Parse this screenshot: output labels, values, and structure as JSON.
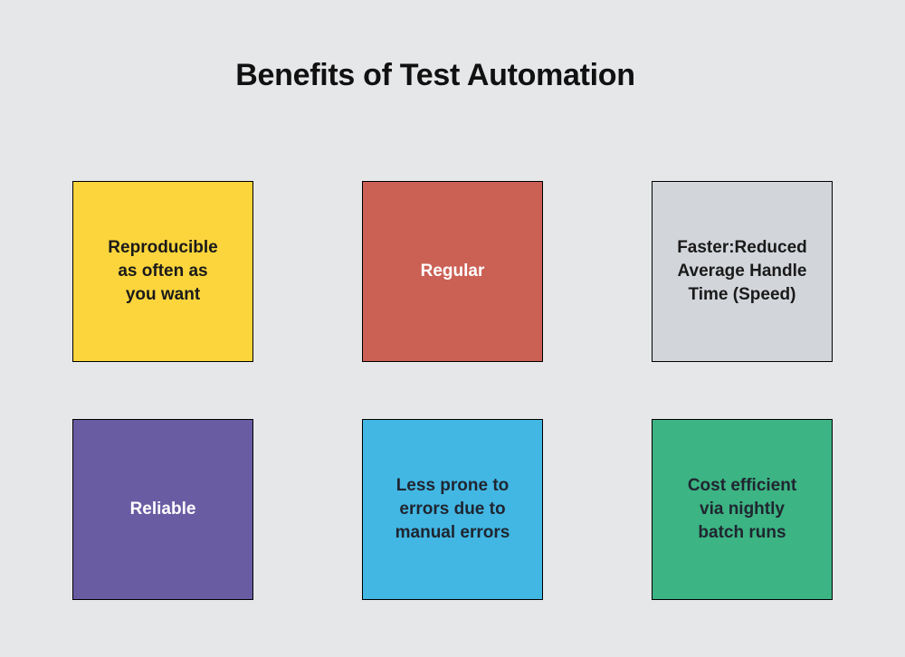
{
  "page": {
    "title": "Benefits of Test Automation",
    "background_color": "#E6E7E9",
    "box_border_color": "#000000"
  },
  "boxes": [
    {
      "id": "reproducible",
      "label": "Reproducible\nas often as\nyou want",
      "bg": "#FCD53C",
      "text_color": "#1A1A1A"
    },
    {
      "id": "regular",
      "label": "Regular",
      "bg": "#CB6055",
      "text_color": "#FFFFFF"
    },
    {
      "id": "faster",
      "label": "Faster:Reduced\nAverage Handle\nTime (Speed)",
      "bg": "#D2D5DA",
      "text_color": "#1A1A1A"
    },
    {
      "id": "reliable",
      "label": "Reliable",
      "bg": "#6A5CA3",
      "text_color": "#FFFFFF"
    },
    {
      "id": "less-errors",
      "label": "Less prone to\nerrors due to\nmanual errors",
      "bg": "#42B7E3",
      "text_color": "#1F2530"
    },
    {
      "id": "cost-efficient",
      "label": "Cost efficient\nvia nightly\nbatch runs",
      "bg": "#3CB483",
      "text_color": "#1F2530"
    }
  ]
}
